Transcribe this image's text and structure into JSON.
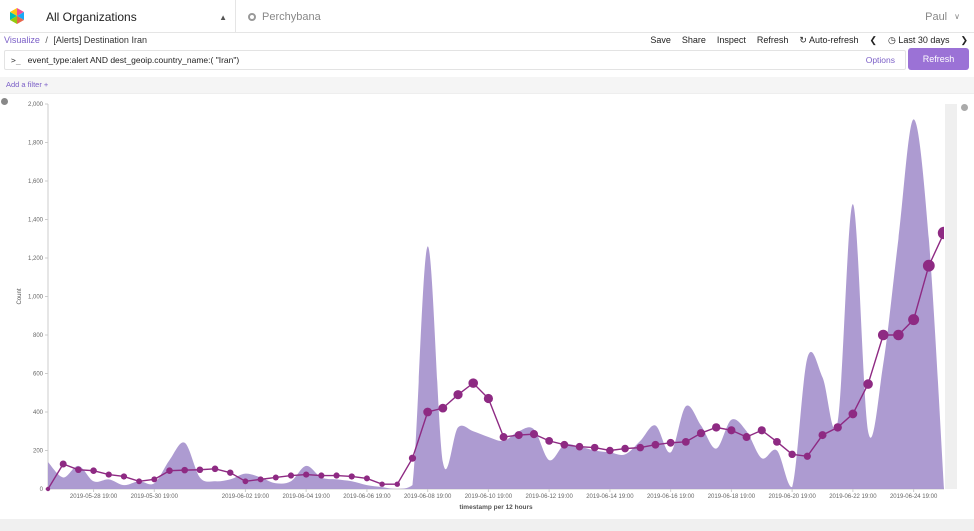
{
  "header": {
    "org_label": "All Organizations",
    "space_label": "Perchybana",
    "user_label": "Paul"
  },
  "breadcrumb": {
    "root": "Visualize",
    "separator": "/",
    "current": "[Alerts] Destination Iran"
  },
  "toolbar": {
    "save": "Save",
    "share": "Share",
    "inspect": "Inspect",
    "refresh": "Refresh",
    "auto_refresh": "Auto-refresh",
    "time_range": "Last 30 days"
  },
  "query": {
    "prompt": ">_",
    "text": "event_type:alert AND dest_geoip.country_name:( \"Iran\")",
    "options": "Options",
    "refresh_button": "Refresh"
  },
  "filter": {
    "add_label": "Add a filter +"
  },
  "colors": {
    "accent": "#7b5fc7",
    "area": "#a996cf",
    "line": "#8e2a83"
  },
  "chart_data": {
    "type": "area",
    "xlabel": "timestamp per 12 hours",
    "ylabel": "Count",
    "ylim": [
      0,
      2000
    ],
    "yticks": [
      0,
      200,
      400,
      600,
      800,
      1000,
      1200,
      1400,
      1600,
      1800,
      2000
    ],
    "ytick_labels": [
      "0",
      "200",
      "400",
      "600",
      "800",
      "1,000",
      "1,200",
      "1,400",
      "1,600",
      "1,800",
      "2,000"
    ],
    "xtick_labels": [
      "2019-05-28 19:00",
      "2019-05-30 19:00",
      "2019-06-02 19:00",
      "2019-06-04 19:00",
      "2019-06-06 19:00",
      "2019-06-08 19:00",
      "2019-06-10 19:00",
      "2019-06-12 19:00",
      "2019-06-14 19:00",
      "2019-06-16 19:00",
      "2019-06-18 19:00",
      "2019-06-20 19:00",
      "2019-06-22 19:00",
      "2019-06-24 19:00"
    ],
    "x": [
      "2019-05-27 07:00",
      "2019-05-27 19:00",
      "2019-05-28 07:00",
      "2019-05-28 19:00",
      "2019-05-29 07:00",
      "2019-05-29 19:00",
      "2019-05-30 07:00",
      "2019-05-30 19:00",
      "2019-05-31 07:00",
      "2019-05-31 19:00",
      "2019-06-01 07:00",
      "2019-06-01 19:00",
      "2019-06-02 07:00",
      "2019-06-02 19:00",
      "2019-06-03 07:00",
      "2019-06-03 19:00",
      "2019-06-04 07:00",
      "2019-06-04 19:00",
      "2019-06-05 07:00",
      "2019-06-05 19:00",
      "2019-06-06 07:00",
      "2019-06-06 19:00",
      "2019-06-07 07:00",
      "2019-06-07 19:00",
      "2019-06-08 07:00",
      "2019-06-08 19:00",
      "2019-06-09 07:00",
      "2019-06-09 19:00",
      "2019-06-10 07:00",
      "2019-06-10 19:00",
      "2019-06-11 07:00",
      "2019-06-11 19:00",
      "2019-06-12 07:00",
      "2019-06-12 19:00",
      "2019-06-13 07:00",
      "2019-06-13 19:00",
      "2019-06-14 07:00",
      "2019-06-14 19:00",
      "2019-06-15 07:00",
      "2019-06-15 19:00",
      "2019-06-16 07:00",
      "2019-06-16 19:00",
      "2019-06-17 07:00",
      "2019-06-17 19:00",
      "2019-06-18 07:00",
      "2019-06-18 19:00",
      "2019-06-19 07:00",
      "2019-06-19 19:00",
      "2019-06-20 07:00",
      "2019-06-20 19:00",
      "2019-06-21 07:00",
      "2019-06-21 19:00",
      "2019-06-22 07:00",
      "2019-06-22 19:00",
      "2019-06-23 07:00",
      "2019-06-23 19:00",
      "2019-06-24 07:00",
      "2019-06-24 19:00",
      "2019-06-25 07:00",
      "2019-06-25 19:00"
    ],
    "series": [
      {
        "kind": "area",
        "values": [
          140,
          60,
          120,
          40,
          50,
          20,
          40,
          30,
          150,
          240,
          60,
          40,
          50,
          80,
          60,
          30,
          40,
          120,
          60,
          50,
          40,
          20,
          10,
          0,
          20,
          1260,
          140,
          320,
          300,
          270,
          250,
          300,
          310,
          150,
          230,
          220,
          200,
          190,
          180,
          250,
          330,
          190,
          430,
          330,
          210,
          360,
          300,
          160,
          200,
          10,
          680,
          580,
          350,
          1480,
          300,
          650,
          1300,
          1920,
          1300,
          0
        ]
      },
      {
        "kind": "line",
        "values": [
          0,
          130,
          100,
          95,
          75,
          65,
          40,
          50,
          95,
          98,
          100,
          105,
          85,
          40,
          50,
          60,
          70,
          75,
          70,
          70,
          65,
          55,
          25,
          25,
          160,
          400,
          420,
          490,
          550,
          470,
          270,
          280,
          285,
          250,
          230,
          220,
          215,
          200,
          210,
          215,
          230,
          240,
          245,
          290,
          320,
          305,
          270,
          305,
          245,
          180,
          170,
          280,
          320,
          390,
          545,
          800,
          800,
          880,
          1160,
          1330
        ]
      }
    ]
  }
}
